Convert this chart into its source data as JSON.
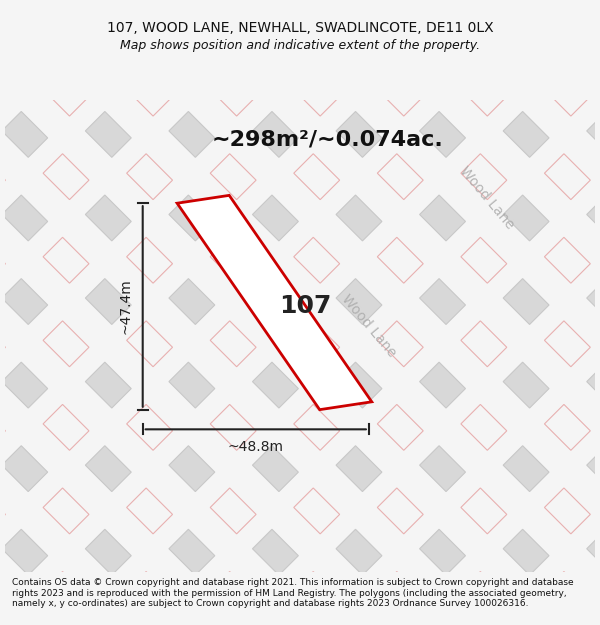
{
  "title_line1": "107, WOOD LANE, NEWHALL, SWADLINCOTE, DE11 0LX",
  "title_line2": "Map shows position and indicative extent of the property.",
  "area_text": "~298m²/~0.074ac.",
  "label_107": "107",
  "dim_height": "~47.4m",
  "dim_width": "~48.8m",
  "road_label": "Wood Lane",
  "footer_text": "Contains OS data © Crown copyright and database right 2021. This information is subject to Crown copyright and database rights 2023 and is reproduced with the permission of HM Land Registry. The polygons (including the associated geometry, namely x, y co-ordinates) are subject to Crown copyright and database rights 2023 Ordnance Survey 100026316.",
  "bg_color": "#f5f5f5",
  "map_bg_color": "#f0efed",
  "plot_fill_color": "#ffffff",
  "plot_outline_color": "#e8e8e8",
  "highlight_color": "#cc0000",
  "dim_line_color": "#222222",
  "road_text_color": "#aaaaaa",
  "title_color": "#111111",
  "footer_color": "#111111",
  "area_text_color": "#111111"
}
